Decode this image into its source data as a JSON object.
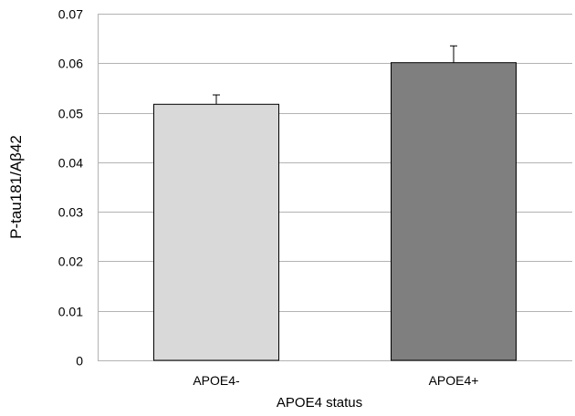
{
  "chart_data": {
    "type": "bar",
    "title": "",
    "xlabel": "APOE4 status",
    "ylabel": "P-tau181/Aβ42",
    "categories": [
      "APOE4-",
      "APOE4+"
    ],
    "values": [
      0.0517,
      0.0601
    ],
    "error": [
      0.0019,
      0.0034
    ],
    "ylim": [
      0,
      0.07
    ],
    "yticks": [
      0,
      0.01,
      0.02,
      0.03,
      0.04,
      0.05,
      0.06,
      0.07
    ],
    "ytick_labels": [
      "0",
      "0.01",
      "0.02",
      "0.03",
      "0.04",
      "0.05",
      "0.06",
      "0.07"
    ],
    "grid": true,
    "bar_colors": [
      "#d9d9d9",
      "#7f7f7f"
    ],
    "bar_edge_color": "#000000",
    "grid_color": "#b3b3b3"
  }
}
